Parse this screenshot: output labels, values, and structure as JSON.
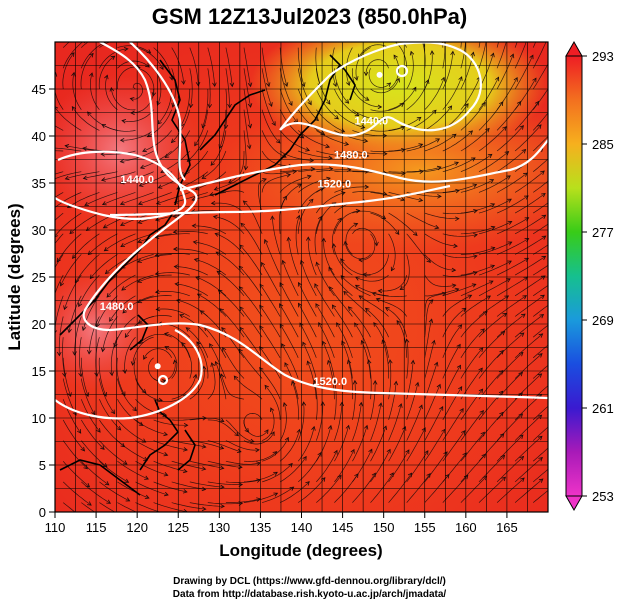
{
  "title": "GSM 12Z13Jul2023 (850.0hPa)",
  "map": {
    "x_label": "Longitude (degrees)",
    "y_label": "Latitude  (degrees)",
    "x_range": [
      110,
      170
    ],
    "y_range": [
      0,
      50
    ],
    "x_ticks": [
      110,
      115,
      120,
      125,
      130,
      135,
      140,
      145,
      150,
      155,
      160,
      165
    ],
    "y_ticks": [
      0,
      5,
      10,
      15,
      20,
      25,
      30,
      35,
      40,
      45
    ],
    "grid_step_deg": 2.5,
    "contour_labels": [
      {
        "text": "1440.0",
        "lon": 148.5,
        "lat": 41.2
      },
      {
        "text": "1440.0",
        "lon": 120.0,
        "lat": 35.0
      },
      {
        "text": "1480.0",
        "lon": 146.0,
        "lat": 37.6
      },
      {
        "text": "1480.0",
        "lon": 117.5,
        "lat": 21.5
      },
      {
        "text": "1520.0",
        "lon": 144.0,
        "lat": 34.5
      },
      {
        "text": "1520.0",
        "lon": 143.5,
        "lat": 13.5
      }
    ],
    "cyclone_centers": [
      {
        "lon": 122.5,
        "lat": 15.5
      },
      {
        "lon": 149.5,
        "lat": 46.5
      }
    ]
  },
  "colorbar": {
    "ticks": [
      "293",
      "285",
      "277",
      "269",
      "261",
      "253"
    ],
    "min": 253,
    "max": 293,
    "colors": [
      "#ee1d24",
      "#f36b1f",
      "#f6a51e",
      "#c8e31e",
      "#38cc18",
      "#16c08e",
      "#1a8fdc",
      "#1a3bd6",
      "#5a1ab8",
      "#cc1aa8",
      "#ee33c8"
    ]
  },
  "credits": {
    "line1": "Drawing by DCL (https://www.gfd-dennou.org/library/dcl/)",
    "line2": "Data from http://database.rish.kyoto-u.ac.jp/arch/jmadata/"
  }
}
